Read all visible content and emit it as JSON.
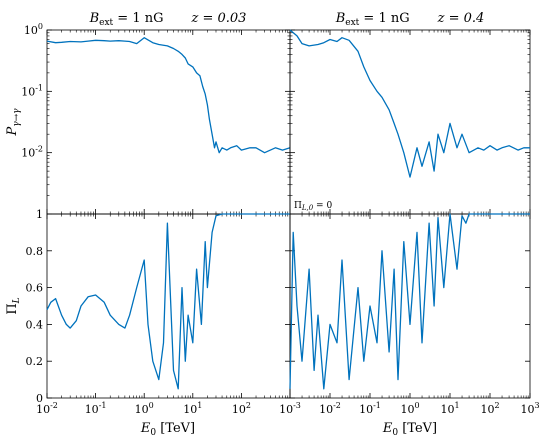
{
  "chart_data": [
    {
      "type": "line",
      "panel": "top-left",
      "title": "B_ext = 1 nG      z = 0.03",
      "ylabel": "P_{γ→γ}",
      "xlabel": "",
      "xscale": "log",
      "yscale": "log",
      "xlim": [
        0.01,
        1000
      ],
      "ylim": [
        0.001,
        1
      ],
      "yticks": [
        "10^0",
        "10^-1",
        "10^-2"
      ],
      "color": "#0072BD",
      "series": [
        {
          "x": [
            0.01,
            0.015,
            0.02,
            0.03,
            0.05,
            0.07,
            0.1,
            0.15,
            0.2,
            0.3,
            0.4,
            0.5,
            0.7,
            1,
            1.5,
            2,
            3,
            4,
            5,
            6,
            7,
            8,
            10,
            12,
            14,
            16,
            18,
            20,
            22,
            25,
            28,
            30,
            35,
            40,
            50,
            60,
            80,
            100,
            150,
            200,
            300,
            500,
            700,
            1000
          ],
          "y": [
            0.66,
            0.62,
            0.63,
            0.65,
            0.64,
            0.66,
            0.68,
            0.67,
            0.66,
            0.67,
            0.66,
            0.65,
            0.6,
            0.75,
            0.62,
            0.58,
            0.55,
            0.5,
            0.45,
            0.4,
            0.35,
            0.28,
            0.25,
            0.2,
            0.18,
            0.12,
            0.09,
            0.06,
            0.035,
            0.02,
            0.012,
            0.015,
            0.01,
            0.012,
            0.011,
            0.012,
            0.013,
            0.011,
            0.012,
            0.012,
            0.01,
            0.012,
            0.011,
            0.012
          ]
        }
      ]
    },
    {
      "type": "line",
      "panel": "top-right",
      "title": "B_ext = 1 nG      z = 0.4",
      "xscale": "log",
      "yscale": "log",
      "xlim": [
        0.001,
        1000
      ],
      "ylim": [
        0.001,
        1
      ],
      "color": "#0072BD",
      "series": [
        {
          "x": [
            0.001,
            0.0015,
            0.002,
            0.003,
            0.005,
            0.007,
            0.01,
            0.015,
            0.02,
            0.03,
            0.05,
            0.07,
            0.1,
            0.15,
            0.2,
            0.3,
            0.4,
            0.5,
            0.7,
            1,
            1.5,
            2,
            3,
            4,
            5,
            7,
            10,
            15,
            20,
            30,
            50,
            70,
            100,
            150,
            200,
            300,
            500,
            700,
            1000
          ],
          "y": [
            1.0,
            0.8,
            0.6,
            0.55,
            0.58,
            0.62,
            0.7,
            0.65,
            0.75,
            0.68,
            0.45,
            0.25,
            0.15,
            0.1,
            0.08,
            0.05,
            0.03,
            0.02,
            0.01,
            0.004,
            0.012,
            0.006,
            0.015,
            0.005,
            0.02,
            0.01,
            0.03,
            0.012,
            0.02,
            0.01,
            0.012,
            0.011,
            0.013,
            0.011,
            0.012,
            0.013,
            0.011,
            0.012,
            0.012
          ]
        }
      ]
    },
    {
      "type": "line",
      "panel": "bottom-left",
      "ylabel": "Π_L",
      "xlabel": "E_0 [TeV]",
      "xscale": "log",
      "xlim": [
        0.01,
        1000
      ],
      "ylim": [
        0,
        1
      ],
      "yticks": [
        "0",
        "0.2",
        "0.4",
        "0.6",
        "0.8",
        "1"
      ],
      "xticks": [
        "10^-2",
        "10^-1",
        "10^0",
        "10^1",
        "10^2",
        "10^3"
      ],
      "color": "#0072BD",
      "series": [
        {
          "x": [
            0.01,
            0.012,
            0.015,
            0.02,
            0.025,
            0.03,
            0.04,
            0.05,
            0.07,
            0.1,
            0.15,
            0.2,
            0.3,
            0.4,
            0.5,
            0.7,
            1,
            1.2,
            1.5,
            2,
            2.5,
            3,
            4,
            5,
            6,
            7,
            8,
            10,
            12,
            15,
            18,
            20,
            25,
            30,
            40,
            50,
            70,
            100,
            200,
            500,
            1000
          ],
          "y": [
            0.48,
            0.52,
            0.54,
            0.45,
            0.4,
            0.38,
            0.42,
            0.5,
            0.55,
            0.56,
            0.52,
            0.45,
            0.4,
            0.38,
            0.45,
            0.6,
            0.75,
            0.4,
            0.2,
            0.1,
            0.3,
            0.95,
            0.15,
            0.05,
            0.6,
            0.2,
            0.45,
            0.3,
            0.7,
            0.4,
            0.85,
            0.6,
            0.9,
            0.99,
            1.0,
            1.0,
            1.0,
            1.0,
            1.0,
            1.0,
            1.0
          ]
        }
      ]
    },
    {
      "type": "line",
      "panel": "bottom-right",
      "xlabel": "E_0 [TeV]",
      "annotation": "Π_{L,0} = 0",
      "xscale": "log",
      "xlim": [
        0.001,
        1000
      ],
      "ylim": [
        0,
        1
      ],
      "xticks": [
        "10^-3",
        "10^-2",
        "10^-1",
        "10^0",
        "10^1",
        "10^2",
        "10^3"
      ],
      "color": "#0072BD",
      "series": [
        {
          "x": [
            0.001,
            0.0012,
            0.0015,
            0.002,
            0.003,
            0.004,
            0.005,
            0.007,
            0.01,
            0.015,
            0.02,
            0.03,
            0.05,
            0.07,
            0.1,
            0.15,
            0.2,
            0.3,
            0.4,
            0.5,
            0.7,
            1,
            1.5,
            2,
            3,
            4,
            5,
            7,
            10,
            15,
            20,
            25,
            30,
            50,
            100,
            200,
            500,
            1000
          ],
          "y": [
            0.05,
            0.9,
            0.5,
            0.2,
            0.7,
            0.15,
            0.45,
            0.05,
            0.4,
            0.3,
            0.75,
            0.1,
            0.6,
            0.2,
            0.5,
            0.3,
            0.8,
            0.25,
            0.7,
            0.1,
            0.85,
            0.4,
            0.9,
            0.3,
            0.95,
            0.5,
            0.98,
            0.6,
            1.0,
            0.7,
            0.99,
            0.95,
            1.0,
            1.0,
            1.0,
            1.0,
            1.0,
            1.0
          ]
        }
      ]
    }
  ],
  "labels": {
    "title_left_B": "B",
    "title_left_B_sub": "ext",
    "title_left_rest": " = 1 nG",
    "title_left_z": "z = 0.03",
    "title_right_B": "B",
    "title_right_B_sub": "ext",
    "title_right_rest": " = 1 nG",
    "title_right_z": "z = 0.4",
    "ylabel_top_P": "P",
    "ylabel_top_sub": "γ→γ",
    "ylabel_bottom": "Π",
    "ylabel_bottom_sub": "L",
    "xlabel_E": "E",
    "xlabel_E_sub": "0",
    "xlabel_unit": " [TeV]",
    "annot_pi": "Π",
    "annot_sub": "L,0",
    "annot_rest": " = 0"
  }
}
